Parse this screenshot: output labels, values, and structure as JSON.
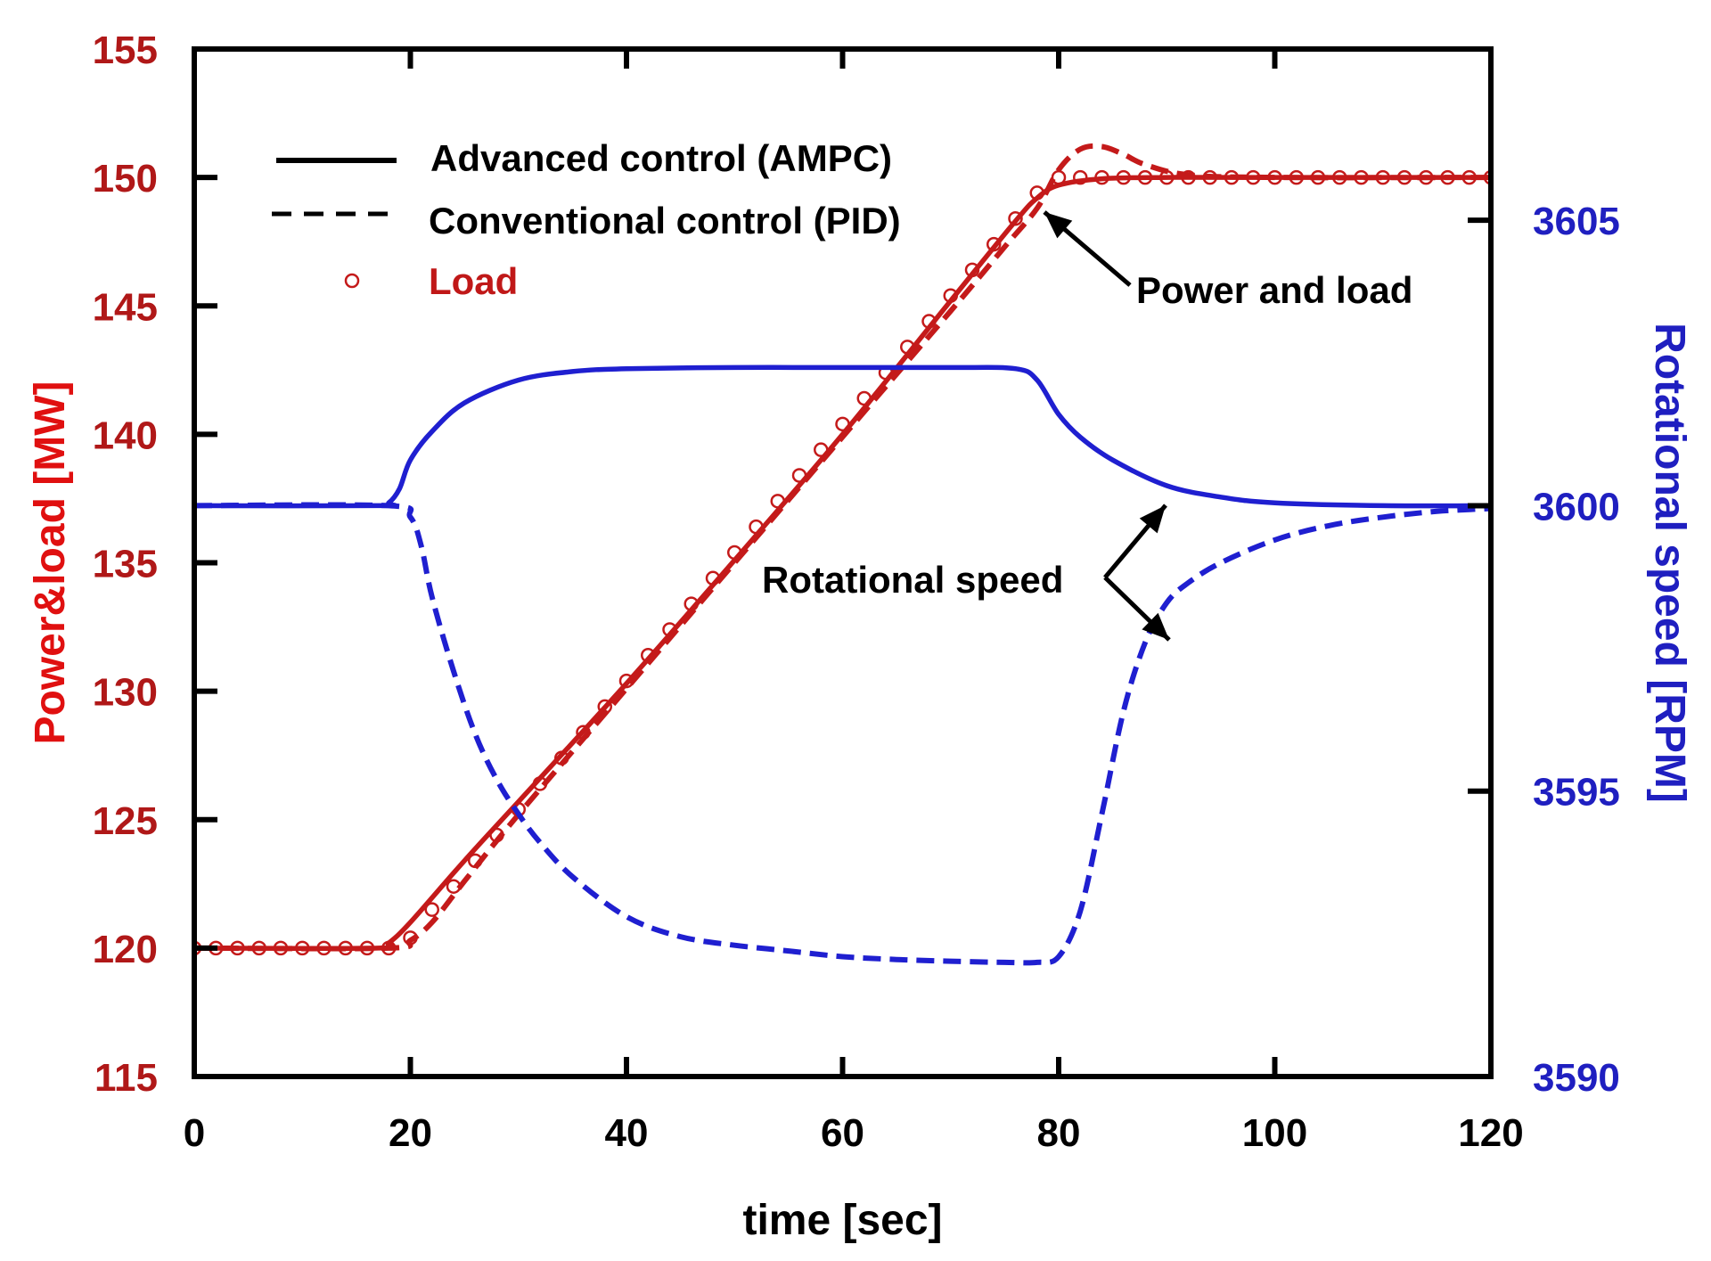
{
  "chart_data": {
    "type": "line",
    "xlabel": "time [sec]",
    "ylabel_left": "Power&load [MW]",
    "ylabel_right": "Rotational speed [RPM]",
    "xlim": [
      0,
      120
    ],
    "ylim_left": [
      115,
      155
    ],
    "ylim_right": [
      3590,
      3608
    ],
    "x_ticks": [
      "0",
      "20",
      "40",
      "60",
      "80",
      "100",
      "120"
    ],
    "y_left_ticks": [
      "115",
      "120",
      "125",
      "130",
      "135",
      "140",
      "145",
      "150",
      "155"
    ],
    "y_right_ticks": [
      "3590",
      "3595",
      "3600",
      "3605"
    ],
    "grid": false,
    "legend_position": "top-left",
    "legend": [
      {
        "label": "Advanced control (AMPC)",
        "style": "solid"
      },
      {
        "label": "Conventional control (PID)",
        "style": "dashed"
      },
      {
        "label": "Load",
        "style": "circle-markers"
      }
    ],
    "annotations": [
      {
        "text": "Power and load"
      },
      {
        "text": "Rotational speed"
      }
    ],
    "colors": {
      "power": "#c41a1a",
      "speed": "#1f1fd0",
      "axis_left": "#b01818",
      "axis_right": "#1f1fc0"
    },
    "series": [
      {
        "axis": "left",
        "color": "#c41a1a",
        "style": "solid",
        "marker": "none",
        "x": [
          0,
          17,
          18,
          20,
          25,
          30,
          40,
          50,
          60,
          70,
          76,
          78,
          80,
          84,
          90,
          100,
          120
        ],
        "y": [
          120,
          120,
          120.2,
          121,
          123.4,
          125.7,
          130.3,
          135.1,
          140,
          145.2,
          148.3,
          149.2,
          149.7,
          149.95,
          150,
          150,
          150
        ]
      },
      {
        "axis": "left",
        "color": "#c41a1a",
        "style": "dashed",
        "marker": "none",
        "x": [
          0,
          18,
          20,
          22,
          25,
          30,
          40,
          50,
          60,
          70,
          75,
          78,
          80,
          82,
          84,
          86,
          88,
          92,
          100,
          120
        ],
        "y": [
          120,
          120,
          120.3,
          121,
          122.6,
          125.2,
          130.1,
          135,
          139.9,
          144.8,
          147.3,
          148.8,
          150.3,
          151.1,
          151.2,
          150.9,
          150.5,
          150.1,
          150,
          150
        ]
      },
      {
        "axis": "left",
        "color": "#c41a1a",
        "style": "none",
        "marker": "circle",
        "x": [
          0,
          2,
          4,
          6,
          8,
          10,
          12,
          14,
          16,
          18,
          20,
          22,
          24,
          26,
          28,
          30,
          32,
          34,
          36,
          38,
          40,
          42,
          44,
          46,
          48,
          50,
          52,
          54,
          56,
          58,
          60,
          62,
          64,
          66,
          68,
          70,
          72,
          74,
          76,
          78,
          80,
          82,
          84,
          86,
          88,
          90,
          92,
          94,
          96,
          98,
          100,
          102,
          104,
          106,
          108,
          110,
          112,
          114,
          116,
          118,
          120
        ],
        "y": [
          120,
          120,
          120,
          120,
          120,
          120,
          120,
          120,
          120,
          120,
          120.4,
          121.5,
          122.4,
          123.4,
          124.4,
          125.4,
          126.4,
          127.4,
          128.4,
          129.4,
          130.4,
          131.4,
          132.4,
          133.4,
          134.4,
          135.4,
          136.4,
          137.4,
          138.4,
          139.4,
          140.4,
          141.4,
          142.4,
          143.4,
          144.4,
          145.4,
          146.4,
          147.4,
          148.4,
          149.4,
          150,
          150,
          150,
          150,
          150,
          150,
          150,
          150,
          150,
          150,
          150,
          150,
          150,
          150,
          150,
          150,
          150,
          150,
          150,
          150,
          150
        ]
      },
      {
        "axis": "right",
        "color": "#1f1fd0",
        "style": "solid",
        "marker": "none",
        "x": [
          0,
          17,
          18,
          19,
          20,
          22,
          25,
          30,
          35,
          40,
          50,
          60,
          70,
          76,
          78,
          80,
          82,
          85,
          90,
          95,
          100,
          110,
          120
        ],
        "y": [
          3600,
          3600,
          3600.05,
          3600.3,
          3600.8,
          3601.3,
          3601.8,
          3602.2,
          3602.35,
          3602.4,
          3602.42,
          3602.42,
          3602.42,
          3602.4,
          3602.2,
          3601.6,
          3601.2,
          3600.8,
          3600.35,
          3600.15,
          3600.05,
          3600,
          3600
        ]
      },
      {
        "axis": "right",
        "color": "#1f1fd0",
        "style": "dashed",
        "marker": "none",
        "x": [
          0,
          18,
          20,
          21,
          22,
          24,
          26,
          28,
          30,
          32,
          35,
          40,
          45,
          50,
          55,
          60,
          65,
          70,
          75,
          78,
          80,
          82,
          84,
          86,
          88,
          90,
          92,
          95,
          100,
          105,
          110,
          115,
          120
        ],
        "y": [
          3600,
          3600,
          3599.8,
          3599.3,
          3598.4,
          3597.1,
          3596.0,
          3595.2,
          3594.6,
          3594.1,
          3593.5,
          3592.8,
          3592.45,
          3592.3,
          3592.2,
          3592.1,
          3592.05,
          3592.02,
          3592.0,
          3592.0,
          3592.1,
          3592.9,
          3594.6,
          3596.4,
          3597.6,
          3598.3,
          3598.65,
          3599.0,
          3599.4,
          3599.65,
          3599.8,
          3599.9,
          3599.95
        ]
      }
    ]
  }
}
